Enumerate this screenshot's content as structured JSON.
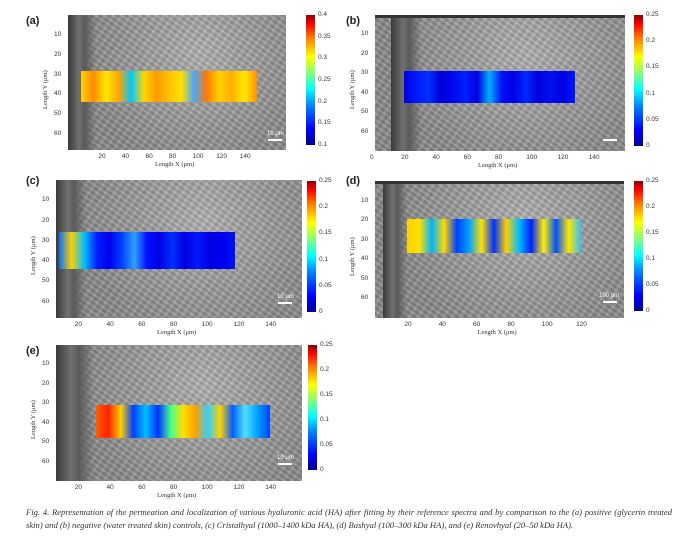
{
  "figure": {
    "axis_titles": {
      "x": "Length X (μm)",
      "y": "Length Y (μm)"
    },
    "colors": {
      "low": "#0000ff",
      "high": "#ff0000"
    },
    "caption": "Fig. 4.  Representation of the permeation and localization of various hyaluronic acid (HA) after fitting by their reference spectra and by comparison to the (a) positive (glycerin treated skin) and (b) negative (water treated skin) controls, (c) Cristalhyal (1000–1400 kDa HA), (d) Bashyal (100–300 kDa HA), and (e) Renovhyal (20–50 kDa HA).",
    "panels": [
      {
        "label": "(a)",
        "x_ticks": [
          "20",
          "40",
          "60",
          "80",
          "100",
          "120",
          "140"
        ],
        "y_ticks": [
          "10",
          "20",
          "30",
          "40",
          "50",
          "60"
        ],
        "colorbar_ticks": [
          "0.4",
          "0.35",
          "0.3",
          "0.25",
          "0.2",
          "0.15",
          "0.1"
        ],
        "scale_bar": "10 μm",
        "map_profile": "hot"
      },
      {
        "label": "(b)",
        "x_ticks": [
          "0",
          "20",
          "40",
          "60",
          "80",
          "100",
          "120",
          "140"
        ],
        "y_ticks": [
          "10",
          "20",
          "30",
          "40",
          "50",
          "60"
        ],
        "colorbar_ticks": [
          "0.25",
          "0.2",
          "0.15",
          "0.1",
          "0.05",
          "0"
        ],
        "scale_bar": "",
        "map_profile": "cold"
      },
      {
        "label": "(c)",
        "x_ticks": [
          "20",
          "40",
          "60",
          "80",
          "100",
          "120",
          "140"
        ],
        "y_ticks": [
          "10",
          "20",
          "30",
          "40",
          "50",
          "60"
        ],
        "colorbar_ticks": [
          "0.25",
          "0.2",
          "0.15",
          "0.1",
          "0.05",
          "0"
        ],
        "scale_bar": "10 μm",
        "map_profile": "cold-left"
      },
      {
        "label": "(d)",
        "x_ticks": [
          "20",
          "40",
          "60",
          "80",
          "100",
          "120"
        ],
        "y_ticks": [
          "10",
          "20",
          "30",
          "40",
          "50",
          "60"
        ],
        "colorbar_ticks": [
          "0.25",
          "0.2",
          "0.15",
          "0.1",
          "0.05",
          "0"
        ],
        "scale_bar": "100 μm",
        "map_profile": "mixed"
      },
      {
        "label": "(e)",
        "x_ticks": [
          "20",
          "40",
          "60",
          "80",
          "100",
          "120",
          "140"
        ],
        "y_ticks": [
          "10",
          "20",
          "30",
          "40",
          "50",
          "60"
        ],
        "colorbar_ticks": [
          "0.25",
          "0.2",
          "0.15",
          "0.1",
          "0.05",
          "0"
        ],
        "scale_bar": "10 μm",
        "map_profile": "warm-left"
      }
    ]
  }
}
